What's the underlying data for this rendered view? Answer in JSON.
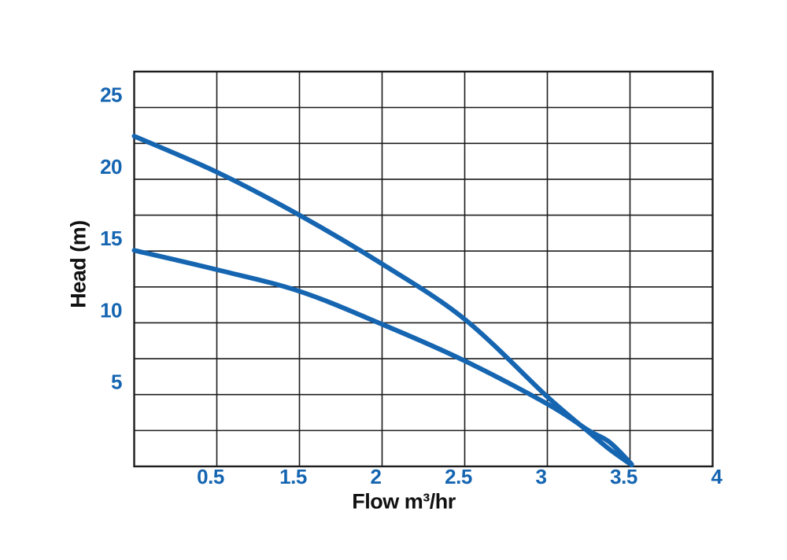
{
  "chart": {
    "background": "#ffffff",
    "accent_blue": "#1565b1",
    "grid_color": "#1c1c1c"
  },
  "chart_data": {
    "type": "line",
    "title": "",
    "xlabel": "Flow m³/hr",
    "ylabel": "Head (m)",
    "grid": "on",
    "legend": "none",
    "x_axis": {
      "gridline_intervals": 7,
      "tick_labels": [
        "0.5",
        "1.5",
        "2",
        "2.5",
        "3",
        "3.5",
        "4"
      ],
      "tick_gridline_indices": [
        1,
        2,
        3,
        4,
        5,
        6,
        7
      ],
      "label_color": "#1565b1"
    },
    "y_axis": {
      "min": 0,
      "max": 27.5,
      "grid_step": 2.5,
      "tick_values": [
        5,
        10,
        15,
        20,
        25
      ],
      "tick_labels": [
        "5",
        "10",
        "15",
        "20",
        "25"
      ],
      "label_color": "#1565b1"
    },
    "series": [
      {
        "name": "pump-curve-upper",
        "color": "#1565b1",
        "points_x_index_vs_head_m": [
          [
            0,
            23.0
          ],
          [
            1,
            20.5
          ],
          [
            2,
            17.5
          ],
          [
            3,
            14.1
          ],
          [
            4,
            10.25
          ],
          [
            5,
            4.85
          ],
          [
            5.5,
            2.4
          ],
          [
            5.75,
            1.2
          ],
          [
            6.02,
            0.1
          ]
        ]
      },
      {
        "name": "pump-curve-lower",
        "color": "#1565b1",
        "points_x_index_vs_head_m": [
          [
            0,
            15.05
          ],
          [
            1,
            13.7
          ],
          [
            2,
            12.2
          ],
          [
            3,
            9.9
          ],
          [
            4,
            7.35
          ],
          [
            5,
            4.35
          ],
          [
            5.5,
            2.5
          ],
          [
            5.75,
            1.7
          ],
          [
            6.02,
            0.15
          ]
        ]
      }
    ]
  }
}
